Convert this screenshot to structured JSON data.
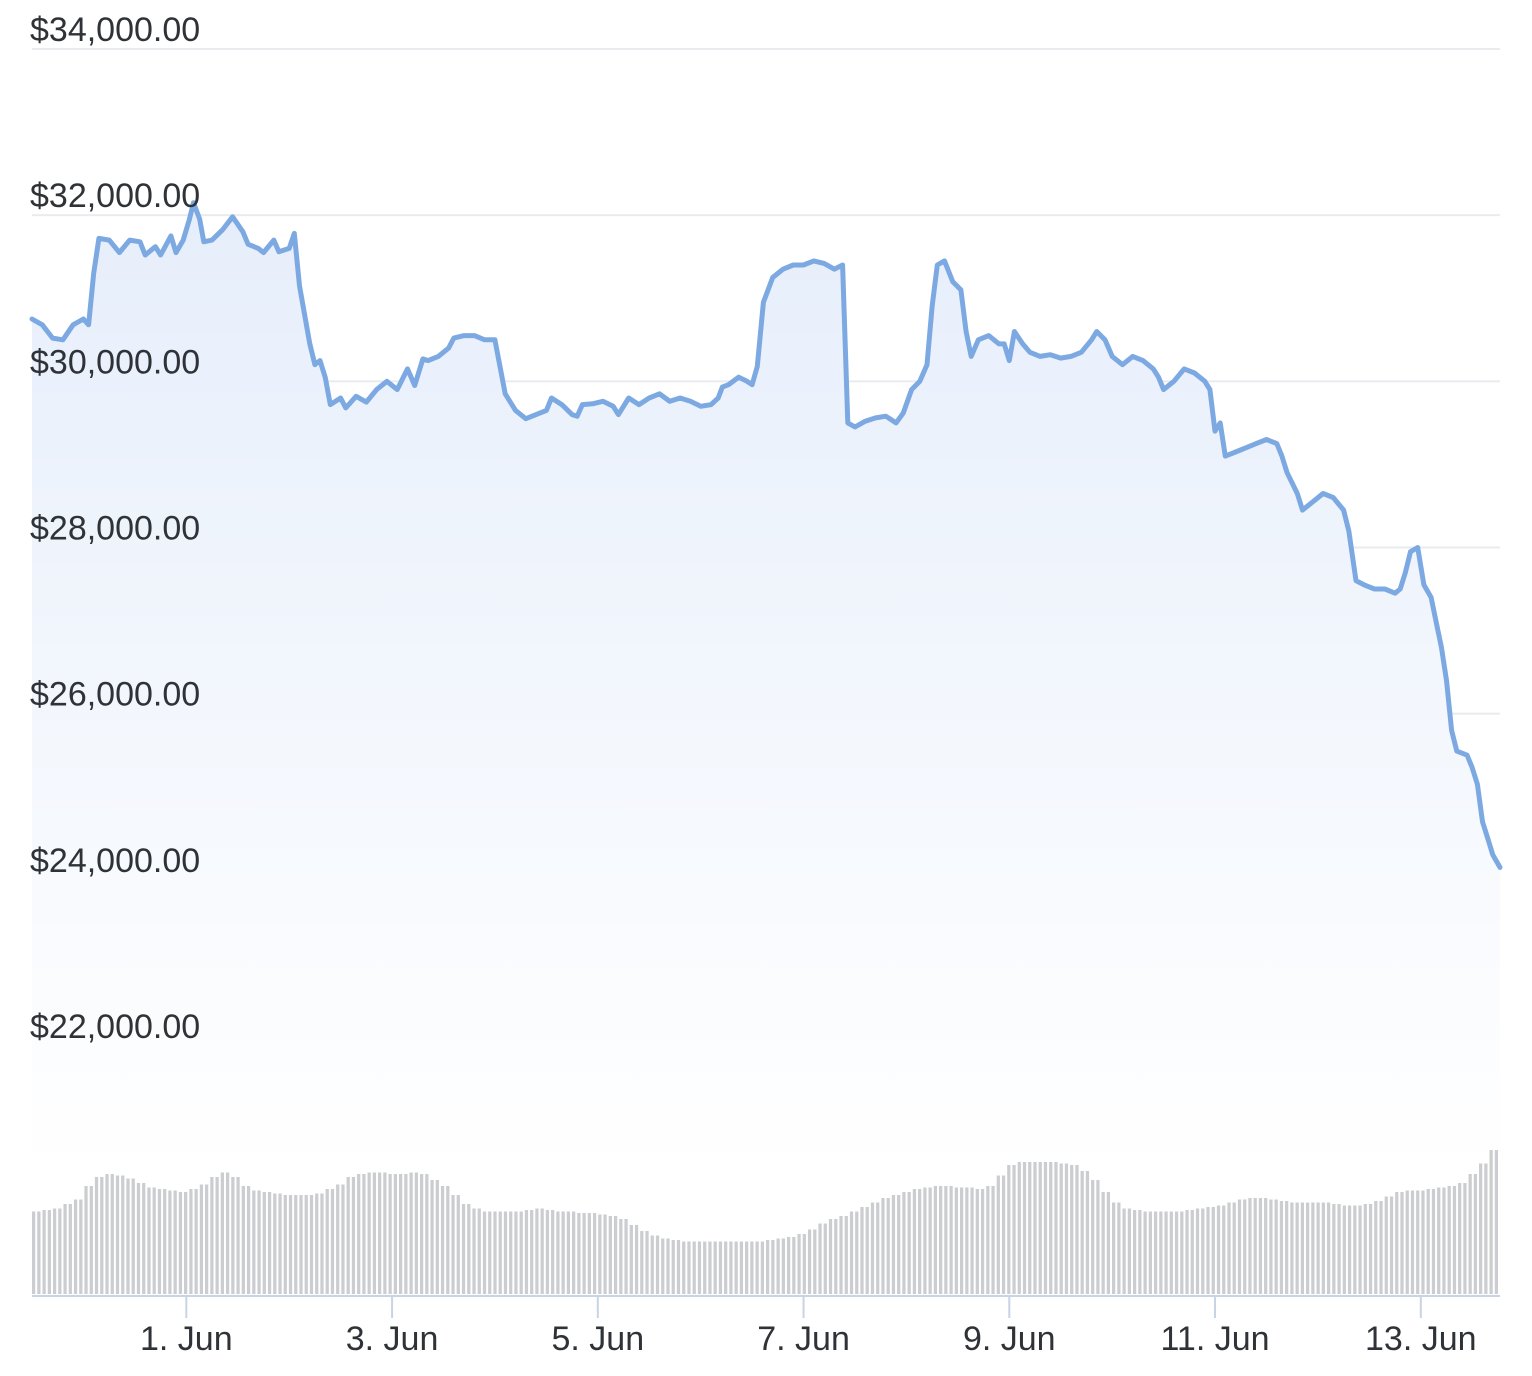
{
  "colors": {
    "line": "#7da9e3",
    "area_top": "#e6eefb",
    "area_bottom": "#ffffff",
    "grid": "#e9ebef",
    "volume": "#cbcdd1",
    "axis": "#c8d3e6",
    "text": "#2f3236"
  },
  "chart_data": {
    "type": "area",
    "title": "",
    "xlabel": "",
    "ylabel": "",
    "ylim": [
      20500,
      34400
    ],
    "grid": true,
    "legend": "none",
    "y_ticks": [
      22000,
      24000,
      26000,
      28000,
      30000,
      32000,
      34000
    ],
    "y_tick_labels": [
      "$22,000.00",
      "$24,000.00",
      "$26,000.00",
      "$28,000.00",
      "$30,000.00",
      "$32,000.00",
      "$34,000.00"
    ],
    "x_range": [
      30.25,
      44.52
    ],
    "x_ticks": [
      {
        "x": 31.75,
        "label": "1. Jun"
      },
      {
        "x": 33.75,
        "label": "3. Jun"
      },
      {
        "x": 35.75,
        "label": "5. Jun"
      },
      {
        "x": 37.75,
        "label": "7. Jun"
      },
      {
        "x": 39.75,
        "label": "9. Jun"
      },
      {
        "x": 41.75,
        "label": "11. Jun"
      },
      {
        "x": 43.75,
        "label": "13. Jun"
      }
    ],
    "series": [
      {
        "type": "line",
        "x_unit": "day (31 May = 31, 1 Jun = 32)",
        "points": [
          [
            30.25,
            30750
          ],
          [
            30.35,
            30680
          ],
          [
            30.45,
            30520
          ],
          [
            30.55,
            30500
          ],
          [
            30.65,
            30680
          ],
          [
            30.75,
            30750
          ],
          [
            30.8,
            30680
          ],
          [
            30.85,
            31300
          ],
          [
            30.9,
            31720
          ],
          [
            31.0,
            31700
          ],
          [
            31.1,
            31550
          ],
          [
            31.2,
            31700
          ],
          [
            31.3,
            31680
          ],
          [
            31.35,
            31520
          ],
          [
            31.45,
            31620
          ],
          [
            31.5,
            31520
          ],
          [
            31.6,
            31750
          ],
          [
            31.65,
            31550
          ],
          [
            31.72,
            31700
          ],
          [
            31.78,
            31950
          ],
          [
            31.82,
            32150
          ],
          [
            31.88,
            31950
          ],
          [
            31.92,
            31680
          ],
          [
            32.0,
            31700
          ],
          [
            32.1,
            31820
          ],
          [
            32.2,
            31980
          ],
          [
            32.3,
            31800
          ],
          [
            32.35,
            31650
          ],
          [
            32.45,
            31600
          ],
          [
            32.5,
            31550
          ],
          [
            32.6,
            31700
          ],
          [
            32.65,
            31560
          ],
          [
            32.75,
            31600
          ],
          [
            32.8,
            31780
          ],
          [
            32.85,
            31150
          ],
          [
            32.95,
            30450
          ],
          [
            33.0,
            30200
          ],
          [
            33.05,
            30250
          ],
          [
            33.1,
            30050
          ],
          [
            33.15,
            29720
          ],
          [
            33.25,
            29800
          ],
          [
            33.3,
            29680
          ],
          [
            33.4,
            29820
          ],
          [
            33.5,
            29750
          ],
          [
            33.6,
            29900
          ],
          [
            33.7,
            30000
          ],
          [
            33.8,
            29900
          ],
          [
            33.9,
            30150
          ],
          [
            33.97,
            29950
          ],
          [
            34.05,
            30270
          ],
          [
            34.1,
            30250
          ],
          [
            34.2,
            30300
          ],
          [
            34.3,
            30400
          ],
          [
            34.35,
            30520
          ],
          [
            34.45,
            30550
          ],
          [
            34.55,
            30550
          ],
          [
            34.65,
            30500
          ],
          [
            34.75,
            30500
          ],
          [
            34.85,
            29850
          ],
          [
            34.95,
            29650
          ],
          [
            35.05,
            29550
          ],
          [
            35.15,
            29600
          ],
          [
            35.25,
            29650
          ],
          [
            35.3,
            29800
          ],
          [
            35.4,
            29720
          ],
          [
            35.5,
            29600
          ],
          [
            35.55,
            29580
          ],
          [
            35.6,
            29720
          ],
          [
            35.7,
            29730
          ],
          [
            35.8,
            29760
          ],
          [
            35.9,
            29700
          ],
          [
            35.95,
            29600
          ],
          [
            36.05,
            29800
          ],
          [
            36.15,
            29720
          ],
          [
            36.25,
            29800
          ],
          [
            36.35,
            29850
          ],
          [
            36.45,
            29760
          ],
          [
            36.55,
            29800
          ],
          [
            36.65,
            29760
          ],
          [
            36.75,
            29700
          ],
          [
            36.85,
            29720
          ],
          [
            36.92,
            29800
          ],
          [
            36.96,
            29930
          ],
          [
            37.02,
            29960
          ],
          [
            37.12,
            30050
          ],
          [
            37.2,
            30000
          ],
          [
            37.25,
            29960
          ],
          [
            37.3,
            30180
          ],
          [
            37.36,
            30950
          ],
          [
            37.45,
            31250
          ],
          [
            37.55,
            31350
          ],
          [
            37.65,
            31400
          ],
          [
            37.75,
            31400
          ],
          [
            37.85,
            31450
          ],
          [
            37.95,
            31420
          ],
          [
            38.05,
            31350
          ],
          [
            38.13,
            31400
          ],
          [
            38.18,
            29500
          ],
          [
            38.25,
            29450
          ],
          [
            38.35,
            29520
          ],
          [
            38.45,
            29560
          ],
          [
            38.55,
            29580
          ],
          [
            38.65,
            29500
          ],
          [
            38.72,
            29620
          ],
          [
            38.8,
            29900
          ],
          [
            38.88,
            30000
          ],
          [
            38.95,
            30200
          ],
          [
            39.0,
            30900
          ],
          [
            39.05,
            31400
          ],
          [
            39.12,
            31450
          ],
          [
            39.2,
            31200
          ],
          [
            39.28,
            31100
          ],
          [
            39.33,
            30600
          ],
          [
            39.38,
            30300
          ],
          [
            39.45,
            30500
          ],
          [
            39.55,
            30550
          ],
          [
            39.65,
            30450
          ],
          [
            39.7,
            30450
          ],
          [
            39.75,
            30250
          ],
          [
            39.8,
            30600
          ],
          [
            39.88,
            30450
          ],
          [
            39.95,
            30350
          ],
          [
            40.05,
            30300
          ],
          [
            40.15,
            30320
          ],
          [
            40.25,
            30280
          ],
          [
            40.35,
            30300
          ],
          [
            40.45,
            30350
          ],
          [
            40.55,
            30500
          ],
          [
            40.6,
            30600
          ],
          [
            40.68,
            30500
          ],
          [
            40.75,
            30300
          ],
          [
            40.85,
            30200
          ],
          [
            40.95,
            30300
          ],
          [
            41.05,
            30250
          ],
          [
            41.15,
            30150
          ],
          [
            41.2,
            30050
          ],
          [
            41.25,
            29900
          ],
          [
            41.35,
            30000
          ],
          [
            41.45,
            30150
          ],
          [
            41.55,
            30100
          ],
          [
            41.65,
            30000
          ],
          [
            41.7,
            29900
          ],
          [
            41.75,
            29400
          ],
          [
            41.8,
            29500
          ],
          [
            41.85,
            29100
          ],
          [
            41.95,
            29150
          ],
          [
            42.05,
            29200
          ],
          [
            42.15,
            29250
          ],
          [
            42.25,
            29300
          ],
          [
            42.35,
            29250
          ],
          [
            42.4,
            29100
          ],
          [
            42.45,
            28900
          ],
          [
            42.55,
            28650
          ],
          [
            42.6,
            28450
          ],
          [
            42.7,
            28550
          ],
          [
            42.8,
            28650
          ],
          [
            42.9,
            28600
          ],
          [
            43.0,
            28450
          ],
          [
            43.05,
            28200
          ],
          [
            43.12,
            27600
          ],
          [
            43.2,
            27550
          ],
          [
            43.3,
            27500
          ],
          [
            43.4,
            27500
          ],
          [
            43.5,
            27450
          ],
          [
            43.55,
            27500
          ],
          [
            43.6,
            27700
          ],
          [
            43.65,
            27950
          ],
          [
            43.72,
            28000
          ],
          [
            43.78,
            27550
          ],
          [
            43.85,
            27400
          ],
          [
            43.9,
            27100
          ],
          [
            43.95,
            26800
          ],
          [
            44.0,
            26400
          ],
          [
            44.05,
            25800
          ],
          [
            44.1,
            25550
          ],
          [
            44.2,
            25500
          ],
          [
            44.25,
            25350
          ],
          [
            44.3,
            25150
          ],
          [
            44.35,
            24700
          ],
          [
            44.4,
            24500
          ],
          [
            44.45,
            24300
          ],
          [
            44.52,
            24150
          ]
        ]
      },
      {
        "type": "column",
        "name": "volume",
        "relative_values": [
          0.55,
          0.56,
          0.57,
          0.6,
          0.63,
          0.72,
          0.78,
          0.8,
          0.79,
          0.77,
          0.74,
          0.71,
          0.7,
          0.69,
          0.68,
          0.7,
          0.73,
          0.78,
          0.81,
          0.78,
          0.72,
          0.69,
          0.68,
          0.67,
          0.66,
          0.66,
          0.66,
          0.67,
          0.7,
          0.73,
          0.78,
          0.8,
          0.81,
          0.81,
          0.8,
          0.8,
          0.81,
          0.8,
          0.76,
          0.72,
          0.66,
          0.6,
          0.57,
          0.55,
          0.55,
          0.55,
          0.55,
          0.56,
          0.57,
          0.56,
          0.55,
          0.55,
          0.54,
          0.54,
          0.53,
          0.52,
          0.5,
          0.46,
          0.42,
          0.39,
          0.37,
          0.36,
          0.35,
          0.35,
          0.35,
          0.35,
          0.35,
          0.35,
          0.35,
          0.35,
          0.36,
          0.37,
          0.38,
          0.4,
          0.43,
          0.47,
          0.5,
          0.52,
          0.55,
          0.58,
          0.61,
          0.64,
          0.66,
          0.68,
          0.7,
          0.71,
          0.72,
          0.72,
          0.71,
          0.71,
          0.7,
          0.72,
          0.79,
          0.86,
          0.88,
          0.88,
          0.88,
          0.88,
          0.87,
          0.86,
          0.82,
          0.76,
          0.68,
          0.61,
          0.57,
          0.56,
          0.55,
          0.55,
          0.55,
          0.55,
          0.56,
          0.57,
          0.58,
          0.59,
          0.61,
          0.63,
          0.64,
          0.64,
          0.63,
          0.62,
          0.61,
          0.61,
          0.61,
          0.61,
          0.6,
          0.59,
          0.59,
          0.6,
          0.62,
          0.65,
          0.68,
          0.69,
          0.69,
          0.7,
          0.71,
          0.72,
          0.74,
          0.8,
          0.87,
          0.96
        ]
      }
    ]
  }
}
